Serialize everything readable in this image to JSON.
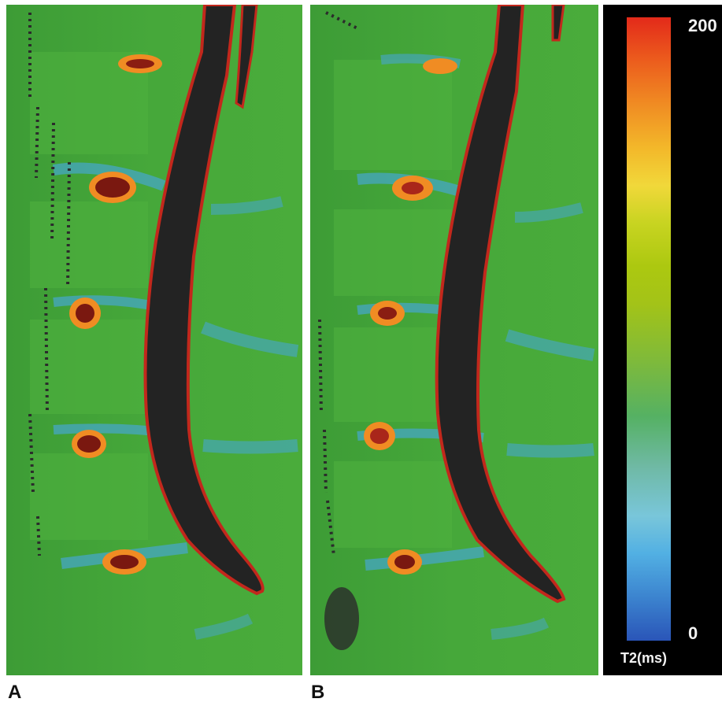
{
  "panels": [
    {
      "id": "A",
      "label": "A"
    },
    {
      "id": "B",
      "label": "B"
    }
  ],
  "colorbar": {
    "max_label": "200",
    "min_label": "0",
    "unit_label": "T2(ms)",
    "scale_min": 0,
    "scale_max": 200,
    "colors": [
      "#e32a1a",
      "#f08c23",
      "#f1d83a",
      "#a3c318",
      "#55b163",
      "#79c6da",
      "#2a55b8"
    ]
  },
  "colors": {
    "tissue_green": "#3fa636",
    "fluid_blue": "#46a6cf",
    "canal_dark": "#232323",
    "high_t2_red": "#c2281c",
    "background": "#000000"
  }
}
